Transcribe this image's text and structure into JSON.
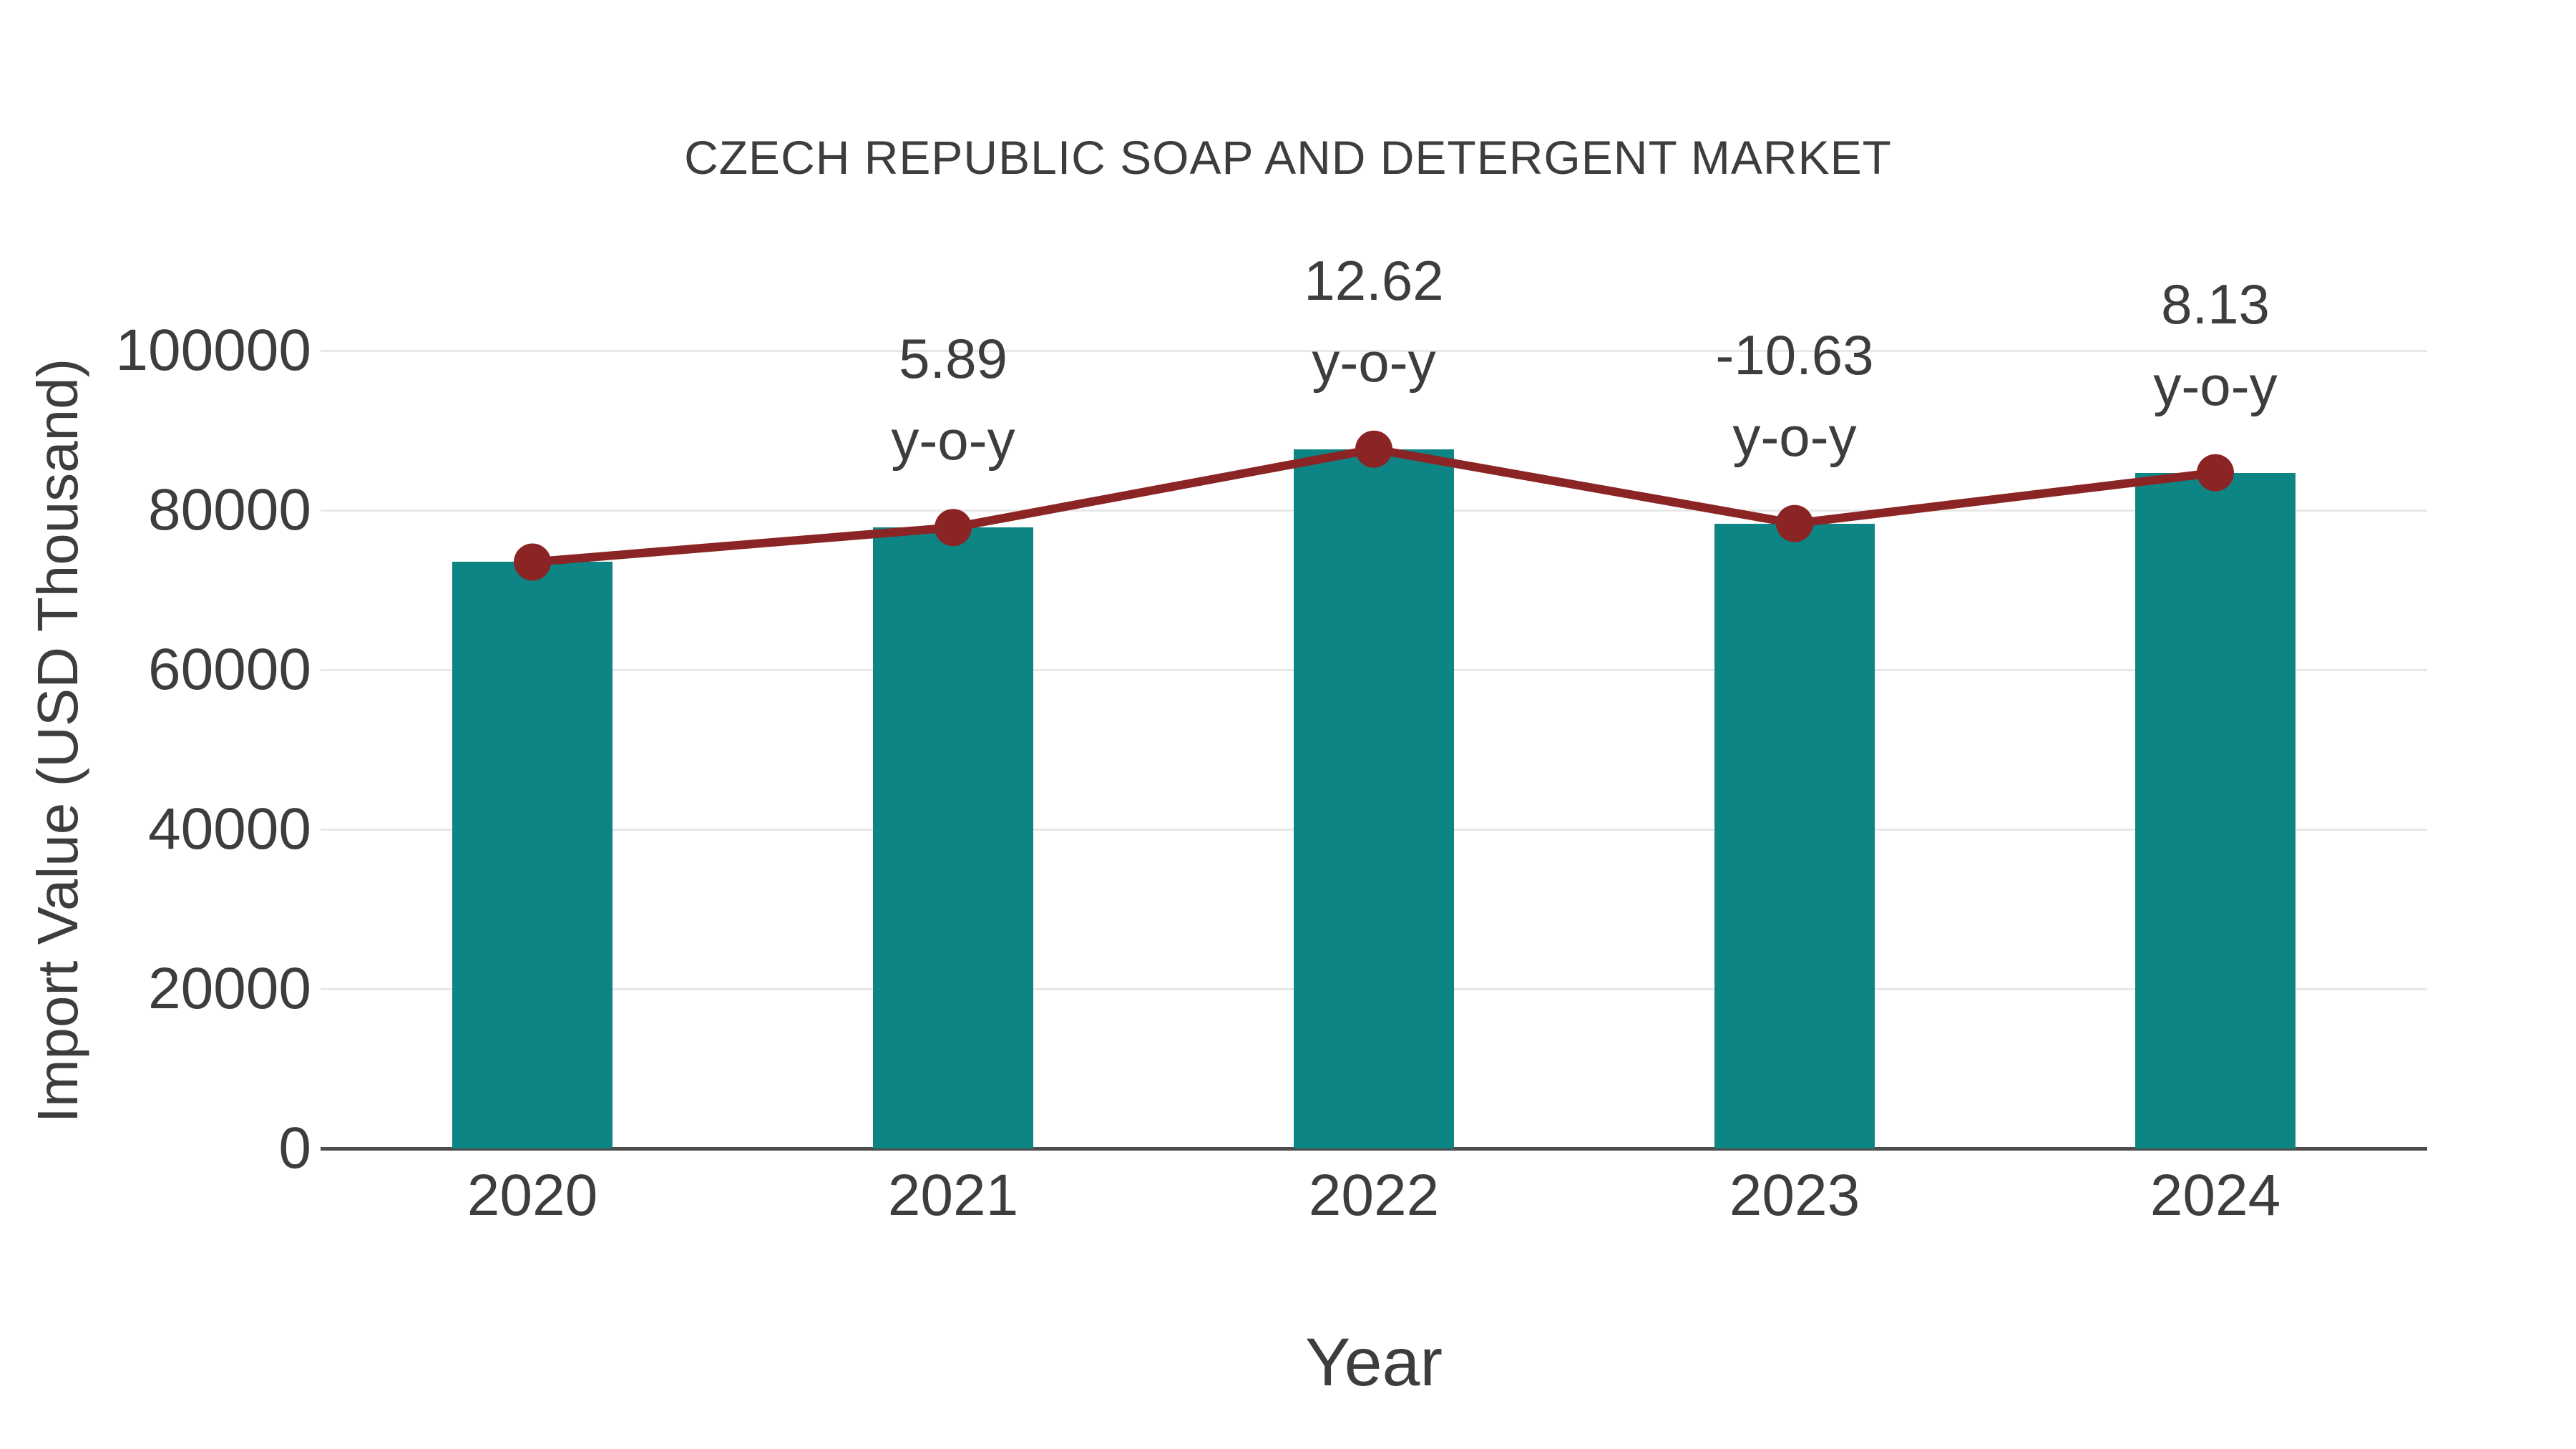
{
  "title": "CZECH REPUBLIC SOAP AND DETERGENT MARKET",
  "chart_data": {
    "type": "bar",
    "title": "CZECH REPUBLIC SOAP AND DETERGENT MARKET",
    "categories": [
      "2020",
      "2021",
      "2022",
      "2023",
      "2024"
    ],
    "series": [
      {
        "name": "Import Value",
        "type": "bar",
        "color": "#0e8585",
        "values": [
          73500,
          77830,
          87650,
          78330,
          84700
        ]
      },
      {
        "name": "Import Value trend",
        "type": "line",
        "color": "#8b2424",
        "values": [
          73500,
          77830,
          87650,
          78330,
          84700
        ]
      }
    ],
    "annotations": [
      {
        "category": "2021",
        "line1": "5.89",
        "line2": "y-o-y"
      },
      {
        "category": "2022",
        "line1": "12.62",
        "line2": "y-o-y"
      },
      {
        "category": "2023",
        "line1": "-10.63",
        "line2": "y-o-y"
      },
      {
        "category": "2024",
        "line1": "8.13",
        "line2": "y-o-y"
      }
    ],
    "xlabel": "Year",
    "ylabel": "Import Value (USD Thousand)",
    "ylim": [
      0,
      100000
    ],
    "yticks": [
      0,
      20000,
      40000,
      60000,
      80000,
      100000
    ],
    "grid": true,
    "legend": false,
    "colors": {
      "bar": "#0e8585",
      "line": "#8b2424",
      "grid": "#e8e8e8",
      "axis": "#4d4d4d",
      "text": "#3d3d3d",
      "background": "#ffffff"
    }
  }
}
